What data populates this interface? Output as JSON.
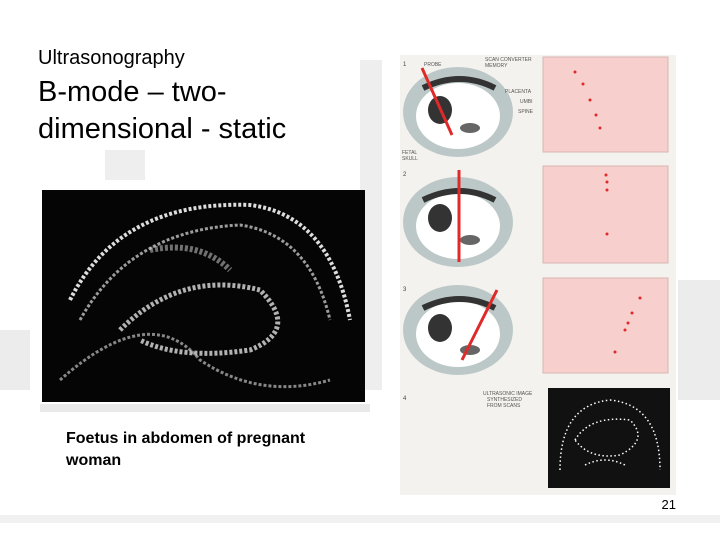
{
  "slide": {
    "subtitle": "Ultrasonography",
    "title_lines": [
      "B-mode – two-",
      "dimensional - static"
    ],
    "caption_lines": [
      "Foetus in abdomen of pregnant",
      "woman"
    ],
    "page_number": "21",
    "figure": {
      "panel_numbers": [
        "1",
        "2",
        "3",
        "4"
      ],
      "labels": {
        "probe": "PROBE",
        "scan_converter": [
          "SCAN CONVERTER",
          "MEMORY"
        ],
        "placenta": "PLACENTA",
        "umbi": "UMBI",
        "spine": "SPINE",
        "fetal_skull": [
          "FETAL",
          "SKULL"
        ],
        "ultrasonic_image": [
          "ULTRASONIC IMAGE",
          "SYNTHESIZED",
          "FROM SCANS"
        ]
      }
    }
  }
}
